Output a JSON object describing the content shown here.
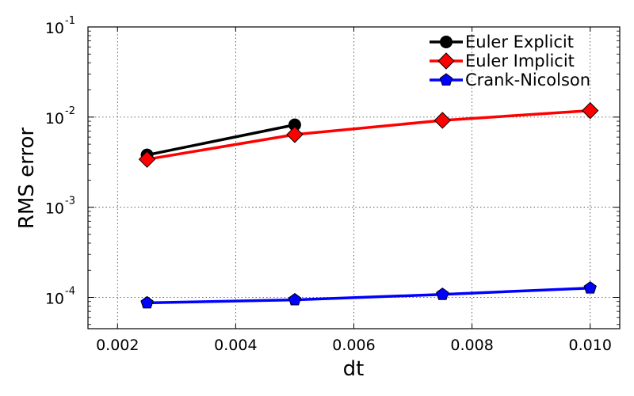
{
  "chart_data": {
    "type": "line",
    "xlabel": "dt",
    "ylabel": "RMS error",
    "xlim": [
      0.0015,
      0.0105
    ],
    "ylim": [
      4.5e-05,
      0.1
    ],
    "yscale": "log",
    "grid": true,
    "legend_position": "top-right",
    "x_ticks": [
      "0.002",
      "0.004",
      "0.006",
      "0.008",
      "0.010"
    ],
    "y_tick_exponents": [
      "-4",
      "-3",
      "-2",
      "-1"
    ],
    "y_tick_base": "10",
    "series": [
      {
        "name": "Euler Explicit",
        "color": "#000000",
        "marker": "circle",
        "x": [
          0.0025,
          0.005
        ],
        "y": [
          0.0038,
          0.0082
        ]
      },
      {
        "name": "Euler Implicit",
        "color": "#ff0000",
        "marker": "diamond",
        "x": [
          0.0025,
          0.005,
          0.0075,
          0.01
        ],
        "y": [
          0.0034,
          0.0064,
          0.0092,
          0.0118
        ]
      },
      {
        "name": "Crank-Nicolson",
        "color": "#0000ff",
        "marker": "pentagon",
        "x": [
          0.0025,
          0.005,
          0.0075,
          0.01
        ],
        "y": [
          8.7e-05,
          9.4e-05,
          0.000108,
          0.000127
        ]
      }
    ]
  }
}
